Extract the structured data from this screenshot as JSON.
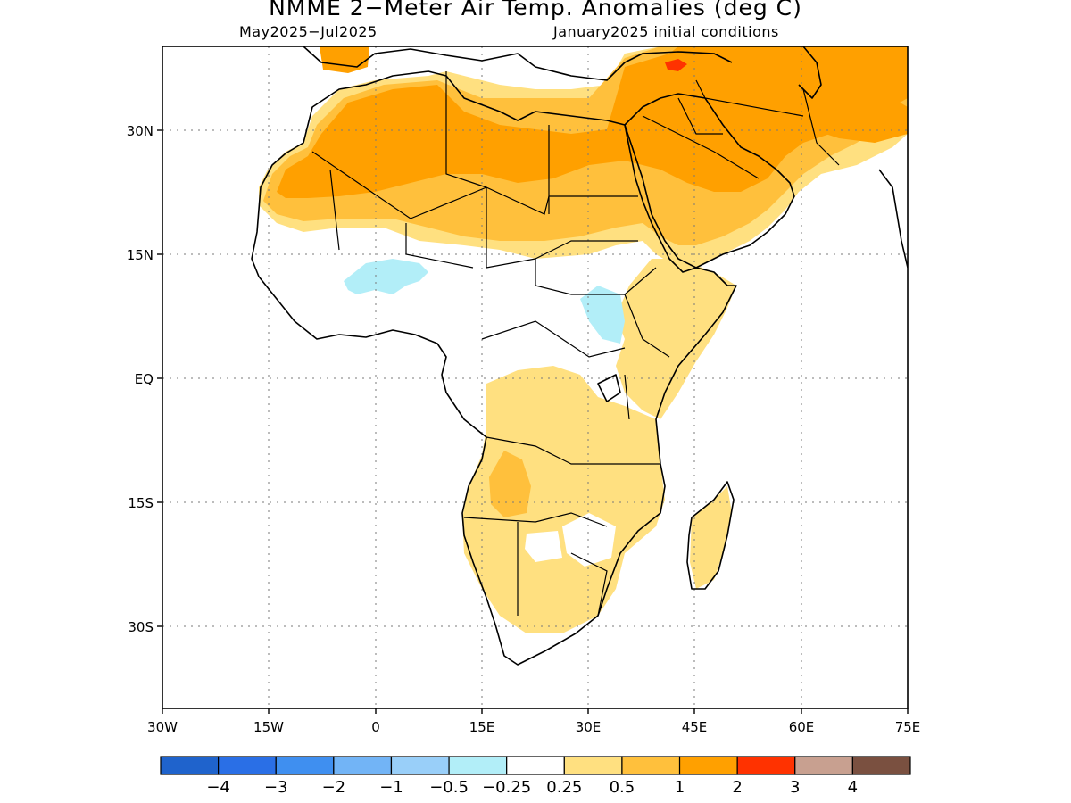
{
  "title": "NMME 2−Meter Air Temp. Anomalies (deg C)",
  "period": "May2025−Jul2025",
  "initial_conditions": "January2025 initial conditions",
  "lat_ticks": [
    {
      "value": 30,
      "label": "30N"
    },
    {
      "value": 15,
      "label": "15N"
    },
    {
      "value": 0,
      "label": "EQ"
    },
    {
      "value": -15,
      "label": "15S"
    },
    {
      "value": -30,
      "label": "30S"
    }
  ],
  "lon_ticks": [
    {
      "value": -30,
      "label": "30W"
    },
    {
      "value": -15,
      "label": "15W"
    },
    {
      "value": 0,
      "label": "0"
    },
    {
      "value": 15,
      "label": "15E"
    },
    {
      "value": 30,
      "label": "30E"
    },
    {
      "value": 45,
      "label": "45E"
    },
    {
      "value": 60,
      "label": "60E"
    },
    {
      "value": 75,
      "label": "75E"
    }
  ],
  "map_extent": {
    "lon": [
      -30,
      75
    ],
    "lat": [
      -40,
      40
    ]
  },
  "colorbar": {
    "colors": [
      "#1f63cc",
      "#2a6fe6",
      "#3f8ff0",
      "#72b4f6",
      "#99cff9",
      "#b2eef8",
      "#ffffff",
      "#ffe080",
      "#ffc03c",
      "#ffa000",
      "#ff3200",
      "#c8a090",
      "#7a5040"
    ],
    "labels": [
      "−4",
      "−3",
      "−2",
      "−1",
      "−0.5",
      "−0.25",
      "0.25",
      "0.5",
      "1",
      "2",
      "3",
      "4"
    ]
  },
  "legend_colors": {
    "weak_cool": "#b2eef8",
    "weak_warm": "#ffe080",
    "warm": "#ffc03c",
    "strong_warm": "#ffa000",
    "hot": "#ff3200"
  }
}
